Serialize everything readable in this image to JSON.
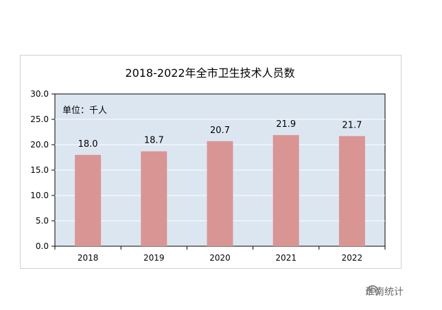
{
  "chart_data": {
    "type": "bar",
    "title": "2018-2022年全市卫生技术人员数",
    "unit_label": "单位：千人",
    "categories": [
      "2018",
      "2019",
      "2020",
      "2021",
      "2022"
    ],
    "values": [
      18.0,
      18.7,
      20.7,
      21.9,
      21.7
    ],
    "value_labels": [
      "18.0",
      "18.7",
      "20.7",
      "21.9",
      "21.7"
    ],
    "ylim": [
      0,
      30
    ],
    "yticks": [
      "0.0",
      "5.0",
      "10.0",
      "15.0",
      "20.0",
      "25.0",
      "30.0"
    ],
    "grid": true,
    "legend": "none",
    "colors": {
      "bar": "#d99594",
      "plot_background": "#dce6f1",
      "grid": "#ffffff",
      "axis": "#000000"
    }
  },
  "watermark": {
    "text": "淮南统计",
    "icon": "wechat-official-account-icon"
  }
}
